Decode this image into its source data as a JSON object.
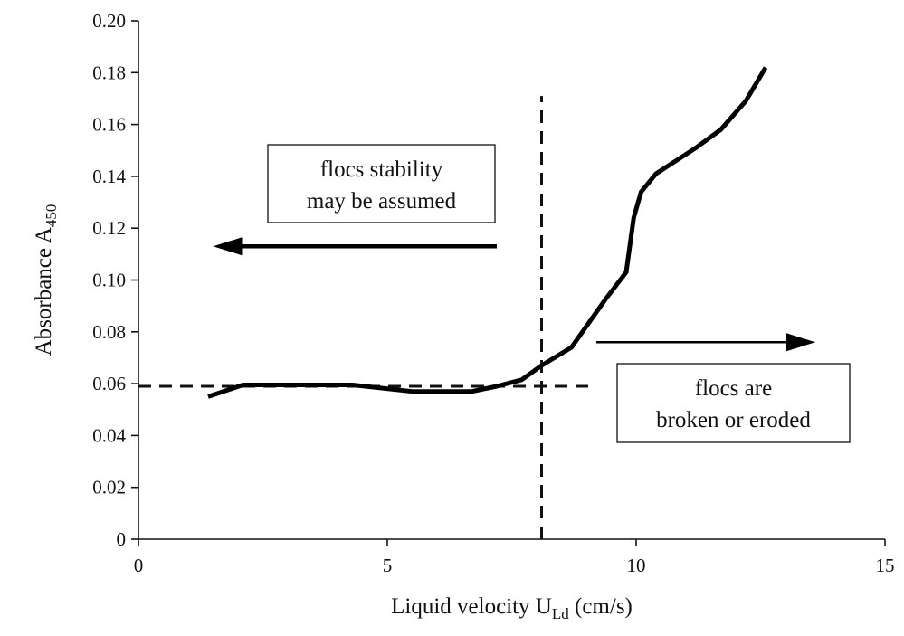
{
  "chart_data": {
    "type": "line",
    "title": "",
    "xlabel": {
      "main": "Liquid velocity U",
      "sub": "Ld",
      "unit": " (cm/s)"
    },
    "ylabel": {
      "main": "Absorbance A",
      "sub": "450"
    },
    "xlim": [
      0,
      15
    ],
    "ylim": [
      0,
      0.2
    ],
    "x_ticks": [
      0,
      5,
      10,
      15
    ],
    "x_tick_labels": [
      "0",
      "5",
      "10",
      "15"
    ],
    "y_ticks": [
      0,
      0.02,
      0.04,
      0.06,
      0.08,
      0.1,
      0.12,
      0.14,
      0.16,
      0.18,
      0.2
    ],
    "y_tick_labels": [
      "0",
      "0.02",
      "0.04",
      "0.06",
      "0.08",
      "0.10",
      "0.12",
      "0.14",
      "0.16",
      "0.18",
      "0.20"
    ],
    "grid": false,
    "series": [
      {
        "x": [
          1.4,
          2.1,
          3.0,
          4.3,
          5.5,
          6.7,
          7.2,
          7.7,
          8.1,
          8.7,
          9.4,
          9.8,
          9.95,
          10.1,
          10.4,
          11.2,
          11.7,
          12.2,
          12.6
        ],
        "y": [
          0.055,
          0.0595,
          0.0595,
          0.0595,
          0.057,
          0.057,
          0.059,
          0.0615,
          0.067,
          0.074,
          0.093,
          0.103,
          0.124,
          0.134,
          0.141,
          0.151,
          0.158,
          0.169,
          0.182
        ]
      }
    ],
    "reference_lines": [
      {
        "orientation": "horizontal",
        "value": 0.059,
        "x_from": 0,
        "x_to": 9.1,
        "style": "dashed"
      },
      {
        "orientation": "vertical",
        "value": 8.1,
        "y_from": 0,
        "y_to": 0.171,
        "style": "dashed"
      }
    ],
    "annotations": [
      {
        "lines": [
          "flocs stability",
          "may be assumed"
        ],
        "arrow": "left",
        "arrow_from_x": 7.2,
        "arrow_to_x": 1.5,
        "arrow_y": 0.113
      },
      {
        "lines": [
          "flocs are",
          "broken or eroded"
        ],
        "arrow": "right",
        "arrow_from_x": 9.2,
        "arrow_to_x": 13.6,
        "arrow_y": 0.076
      }
    ]
  }
}
